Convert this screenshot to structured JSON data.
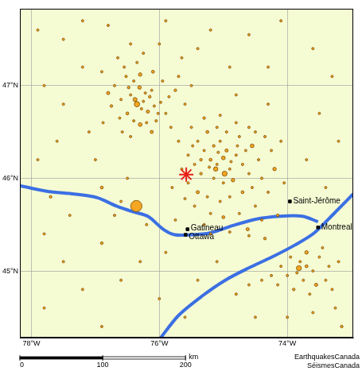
{
  "chart_data": {
    "type": "scatter",
    "xlim": [
      -78.18,
      -72.97
    ],
    "ylim": [
      44.28,
      47.83
    ],
    "xticks": [
      {
        "value": -78,
        "label": "78°W"
      },
      {
        "value": -76,
        "label": "76°W"
      },
      {
        "value": -74,
        "label": "74°W"
      }
    ],
    "yticks": [
      {
        "value": 45,
        "label": "45°N"
      },
      {
        "value": 46,
        "label": "46°N"
      },
      {
        "value": 47,
        "label": "47°N"
      }
    ],
    "grid": true,
    "color": "#f5a623",
    "events": [
      [
        -76.52,
        47.1,
        2.1
      ],
      [
        -76.4,
        47.05,
        1.8
      ],
      [
        -76.31,
        46.98,
        2.5
      ],
      [
        -76.22,
        46.92,
        1.9
      ],
      [
        -76.15,
        46.88,
        2.2
      ],
      [
        -76.45,
        46.9,
        1.7
      ],
      [
        -76.6,
        46.85,
        2.0
      ],
      [
        -76.35,
        46.8,
        3.1
      ],
      [
        -76.28,
        46.75,
        1.8
      ],
      [
        -76.18,
        46.72,
        2.4
      ],
      [
        -76.08,
        46.78,
        1.9
      ],
      [
        -75.98,
        46.82,
        2.0
      ],
      [
        -75.9,
        46.7,
        1.8
      ],
      [
        -76.5,
        46.7,
        2.3
      ],
      [
        -76.62,
        46.65,
        1.7
      ],
      [
        -76.4,
        46.62,
        2.0
      ],
      [
        -76.3,
        46.58,
        2.6
      ],
      [
        -76.2,
        46.6,
        1.8
      ],
      [
        -76.05,
        46.62,
        2.1
      ],
      [
        -75.85,
        46.88,
        1.9
      ],
      [
        -75.75,
        46.95,
        2.2
      ],
      [
        -76.7,
        47.0,
        1.8
      ],
      [
        -76.8,
        46.92,
        2.4
      ],
      [
        -76.55,
        47.2,
        2.0
      ],
      [
        -76.35,
        47.25,
        1.7
      ],
      [
        -76.1,
        47.15,
        2.3
      ],
      [
        -75.95,
        47.05,
        1.9
      ],
      [
        -75.7,
        47.1,
        2.1
      ],
      [
        -76.25,
        47.35,
        1.8
      ],
      [
        -76.65,
        47.3,
        2.0
      ],
      [
        -76.9,
        47.15,
        1.7
      ],
      [
        -76.75,
        46.78,
        2.2
      ],
      [
        -76.88,
        46.6,
        1.9
      ],
      [
        -76.58,
        46.5,
        2.0
      ],
      [
        -76.45,
        46.45,
        1.8
      ],
      [
        -76.12,
        46.5,
        2.4
      ],
      [
        -75.82,
        46.55,
        1.7
      ],
      [
        -75.6,
        46.8,
        2.0
      ],
      [
        -75.5,
        47.0,
        1.9
      ],
      [
        -76.38,
        46.85,
        2.7
      ],
      [
        -76.25,
        46.83,
        2.0
      ],
      [
        -76.12,
        46.95,
        1.8
      ],
      [
        -76.48,
        46.98,
        2.2
      ],
      [
        -76.02,
        46.7,
        1.7
      ],
      [
        -76.3,
        47.12,
        2.5
      ],
      [
        -75.65,
        47.3,
        1.8
      ],
      [
        -76.0,
        47.45,
        2.0
      ],
      [
        -76.45,
        47.45,
        1.7
      ],
      [
        -75.2,
        46.2,
        2.3
      ],
      [
        -75.1,
        46.15,
        1.9
      ],
      [
        -75.0,
        46.22,
        2.6
      ],
      [
        -74.9,
        46.1,
        2.0
      ],
      [
        -75.3,
        46.3,
        1.8
      ],
      [
        -75.15,
        46.35,
        2.2
      ],
      [
        -75.05,
        46.4,
        1.7
      ],
      [
        -74.95,
        46.3,
        2.4
      ],
      [
        -74.8,
        46.25,
        1.9
      ],
      [
        -74.7,
        46.15,
        2.1
      ],
      [
        -74.6,
        46.05,
        1.8
      ],
      [
        -74.85,
        45.98,
        2.5
      ],
      [
        -75.0,
        45.95,
        1.9
      ],
      [
        -75.15,
        46.0,
        2.0
      ],
      [
        -75.35,
        46.05,
        2.2
      ],
      [
        -75.45,
        46.15,
        1.8
      ],
      [
        -75.55,
        46.25,
        2.0
      ],
      [
        -75.4,
        46.4,
        1.9
      ],
      [
        -75.25,
        46.5,
        2.3
      ],
      [
        -75.1,
        46.55,
        1.7
      ],
      [
        -74.95,
        46.5,
        2.0
      ],
      [
        -74.75,
        46.45,
        1.8
      ],
      [
        -74.55,
        46.35,
        2.6
      ],
      [
        -74.45,
        46.2,
        1.9
      ],
      [
        -74.4,
        46.0,
        2.1
      ],
      [
        -74.55,
        45.9,
        1.8
      ],
      [
        -74.7,
        45.85,
        2.3
      ],
      [
        -74.9,
        45.8,
        1.9
      ],
      [
        -75.05,
        45.75,
        2.0
      ],
      [
        -75.25,
        45.8,
        1.7
      ],
      [
        -75.4,
        45.85,
        2.4
      ],
      [
        -75.55,
        45.95,
        1.9
      ],
      [
        -75.65,
        46.1,
        2.0
      ],
      [
        -75.5,
        46.55,
        1.8
      ],
      [
        -75.3,
        46.65,
        2.2
      ],
      [
        -75.05,
        46.68,
        1.9
      ],
      [
        -74.8,
        46.6,
        2.0
      ],
      [
        -74.6,
        46.55,
        1.7
      ],
      [
        -74.35,
        46.45,
        2.1
      ],
      [
        -74.25,
        46.3,
        1.8
      ],
      [
        -74.2,
        46.1,
        2.5
      ],
      [
        -74.3,
        45.85,
        1.9
      ],
      [
        -74.5,
        45.7,
        2.0
      ],
      [
        -74.75,
        45.62,
        1.8
      ],
      [
        -75.0,
        45.58,
        2.3
      ],
      [
        -75.2,
        45.62,
        1.9
      ],
      [
        -75.45,
        45.7,
        2.0
      ],
      [
        -75.6,
        45.78,
        1.7
      ],
      [
        -75.12,
        46.1,
        2.8
      ],
      [
        -74.98,
        46.05,
        3.0
      ],
      [
        -75.22,
        46.12,
        2.0
      ],
      [
        -74.88,
        46.18,
        1.9
      ],
      [
        -75.08,
        46.28,
        2.1
      ],
      [
        -74.65,
        46.3,
        2.0
      ],
      [
        -74.78,
        46.35,
        1.8
      ],
      [
        -75.35,
        46.2,
        2.2
      ],
      [
        -75.48,
        46.35,
        1.9
      ],
      [
        -74.5,
        46.5,
        2.0
      ],
      [
        -74.1,
        46.4,
        1.8
      ],
      [
        -74.05,
        45.95,
        2.0
      ],
      [
        -74.15,
        45.6,
        2.2
      ],
      [
        -74.4,
        45.55,
        1.8
      ],
      [
        -74.62,
        45.45,
        2.4
      ],
      [
        -75.3,
        45.5,
        1.9
      ],
      [
        -75.75,
        45.55,
        2.0
      ],
      [
        -75.8,
        45.9,
        1.8
      ],
      [
        -75.7,
        46.4,
        2.1
      ],
      [
        -75.2,
        45.4,
        1.8
      ],
      [
        -74.9,
        45.42,
        2.0
      ],
      [
        -74.6,
        45.38,
        1.9
      ],
      [
        -74.35,
        45.35,
        2.2
      ],
      [
        -73.95,
        45.15,
        2.0
      ],
      [
        -73.8,
        45.1,
        1.8
      ],
      [
        -73.7,
        45.05,
        2.3
      ],
      [
        -73.6,
        45.0,
        1.9
      ],
      [
        -73.85,
        44.98,
        2.1
      ],
      [
        -74.0,
        44.95,
        1.7
      ],
      [
        -74.1,
        45.05,
        2.0
      ],
      [
        -73.75,
        44.9,
        1.8
      ],
      [
        -73.55,
        44.85,
        2.4
      ],
      [
        -73.4,
        44.9,
        1.9
      ],
      [
        -73.3,
        44.8,
        2.0
      ],
      [
        -73.65,
        44.75,
        1.8
      ],
      [
        -73.9,
        44.8,
        2.2
      ],
      [
        -74.15,
        44.85,
        1.9
      ],
      [
        -73.5,
        45.15,
        2.0
      ],
      [
        -73.35,
        45.05,
        1.7
      ],
      [
        -73.2,
        45.1,
        2.1
      ],
      [
        -73.45,
        45.25,
        1.8
      ],
      [
        -73.7,
        45.2,
        2.5
      ],
      [
        -73.82,
        45.03,
        3.0
      ],
      [
        -74.25,
        44.95,
        1.9
      ],
      [
        -74.4,
        44.9,
        2.0
      ],
      [
        -74.6,
        44.85,
        1.8
      ],
      [
        -74.8,
        44.75,
        2.1
      ],
      [
        -73.25,
        44.6,
        1.9
      ],
      [
        -73.6,
        44.55,
        2.0
      ],
      [
        -74.0,
        44.5,
        1.8
      ],
      [
        -73.15,
        44.4,
        2.2
      ],
      [
        -74.5,
        44.5,
        1.7
      ],
      [
        -77.9,
        47.6,
        1.8
      ],
      [
        -77.5,
        47.5,
        2.0
      ],
      [
        -77.2,
        47.7,
        1.7
      ],
      [
        -76.8,
        47.65,
        2.0
      ],
      [
        -75.9,
        47.7,
        1.8
      ],
      [
        -75.2,
        47.6,
        1.9
      ],
      [
        -74.6,
        47.55,
        1.7
      ],
      [
        -74.1,
        47.7,
        2.0
      ],
      [
        -73.6,
        47.4,
        1.8
      ],
      [
        -73.3,
        47.1,
        1.9
      ],
      [
        -73.5,
        46.7,
        2.0
      ],
      [
        -73.2,
        46.4,
        1.8
      ],
      [
        -73.7,
        46.2,
        1.9
      ],
      [
        -73.4,
        45.9,
        1.7
      ],
      [
        -77.8,
        47.0,
        2.0
      ],
      [
        -77.5,
        46.8,
        1.8
      ],
      [
        -77.6,
        46.4,
        1.9
      ],
      [
        -77.9,
        46.2,
        1.7
      ],
      [
        -77.7,
        45.8,
        2.2
      ],
      [
        -77.4,
        45.6,
        1.8
      ],
      [
        -77.8,
        45.4,
        2.0
      ],
      [
        -77.5,
        45.1,
        1.7
      ],
      [
        -77.2,
        44.8,
        1.9
      ],
      [
        -77.8,
        44.6,
        2.0
      ],
      [
        -76.9,
        44.4,
        1.8
      ],
      [
        -76.6,
        44.9,
        2.1
      ],
      [
        -76.3,
        45.1,
        1.9
      ],
      [
        -76.0,
        44.7,
        1.8
      ],
      [
        -75.6,
        44.5,
        2.0
      ],
      [
        -75.4,
        44.9,
        1.7
      ],
      [
        -75.1,
        45.1,
        1.9
      ],
      [
        -76.9,
        45.3,
        2.2
      ],
      [
        -76.7,
        45.6,
        1.8
      ],
      [
        -76.5,
        46.0,
        2.0
      ],
      [
        -77.0,
        46.2,
        1.9
      ],
      [
        -76.9,
        45.9,
        2.3
      ],
      [
        -76.2,
        45.5,
        1.8
      ],
      [
        -76.6,
        45.75,
        2.0
      ],
      [
        -76.36,
        45.7,
        4.5
      ],
      [
        -75.9,
        45.2,
        1.9
      ],
      [
        -77.1,
        46.5,
        1.8
      ],
      [
        -77.2,
        47.2,
        2.0
      ],
      [
        -74.9,
        47.2,
        1.9
      ],
      [
        -74.3,
        47.2,
        1.8
      ],
      [
        -75.4,
        47.4,
        2.0
      ],
      [
        -74.8,
        46.9,
        1.7
      ],
      [
        -74.3,
        46.8,
        1.9
      ]
    ],
    "epicenter": {
      "x": -75.58,
      "y": 46.04,
      "color": "#e8201a",
      "marker": "star"
    },
    "cities": [
      {
        "name": "Gatineau",
        "x": -75.56,
        "y": 45.45
      },
      {
        "name": "Ottawa",
        "x": -75.59,
        "y": 45.39
      },
      {
        "name": "Saint-Jérôme",
        "x": -73.96,
        "y": 45.75
      },
      {
        "name": "Montreal",
        "x": -73.52,
        "y": 45.47
      }
    ],
    "rivers": [
      [
        [
          -78.18,
          45.92
        ],
        [
          -77.76,
          45.86
        ],
        [
          -77.33,
          45.83
        ],
        [
          -76.97,
          45.79
        ],
        [
          -76.67,
          45.7
        ],
        [
          -76.42,
          45.64
        ],
        [
          -76.18,
          45.59
        ],
        [
          -75.94,
          45.45
        ],
        [
          -75.76,
          45.39
        ],
        [
          -75.52,
          45.39
        ],
        [
          -75.21,
          45.41
        ],
        [
          -74.85,
          45.49
        ],
        [
          -74.48,
          45.56
        ],
        [
          -74.12,
          45.59
        ],
        [
          -73.76,
          45.59
        ],
        [
          -73.52,
          45.53
        ]
      ],
      [
        [
          -72.97,
          45.83
        ],
        [
          -73.27,
          45.62
        ],
        [
          -73.58,
          45.41
        ],
        [
          -73.88,
          45.28
        ],
        [
          -74.24,
          45.15
        ],
        [
          -74.61,
          45.03
        ],
        [
          -74.97,
          44.9
        ],
        [
          -75.33,
          44.73
        ],
        [
          -75.7,
          44.52
        ],
        [
          -76.0,
          44.26
        ]
      ]
    ],
    "scale_bar": {
      "ticks": [
        0,
        100,
        200
      ],
      "unit": "km"
    },
    "credits": [
      "EarthquakesCanada",
      "SéismesCanada"
    ]
  }
}
